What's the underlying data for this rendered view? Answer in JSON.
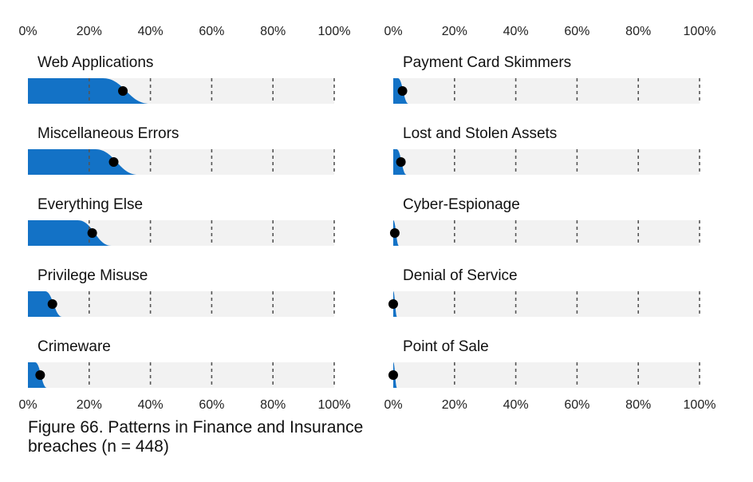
{
  "caption": {
    "line1": "Figure 66. Patterns in Finance and Insurance",
    "line2": "breaches (n = 448)"
  },
  "colors": {
    "fill": "#1372c6",
    "track": "#f2f2f2",
    "point": "#000000",
    "gridline": "#555555"
  },
  "chart_data": [
    {
      "type": "bar",
      "xlim": [
        0,
        100
      ],
      "x_ticks": [
        "0%",
        "20%",
        "40%",
        "60%",
        "80%",
        "100%"
      ],
      "categories": [
        "Web Applications",
        "Miscellaneous Errors",
        "Everything Else",
        "Privilege Misuse",
        "Crimeware"
      ],
      "values": [
        31,
        28,
        21,
        8,
        4
      ],
      "grid": true
    },
    {
      "type": "bar",
      "xlim": [
        0,
        100
      ],
      "x_ticks": [
        "0%",
        "20%",
        "40%",
        "60%",
        "80%",
        "100%"
      ],
      "categories": [
        "Payment Card Skimmers",
        "Lost and Stolen Assets",
        "Cyber-Espionage",
        "Denial of Service",
        "Point of Sale"
      ],
      "values": [
        3,
        2.5,
        0.5,
        0,
        0
      ],
      "grid": true
    }
  ]
}
